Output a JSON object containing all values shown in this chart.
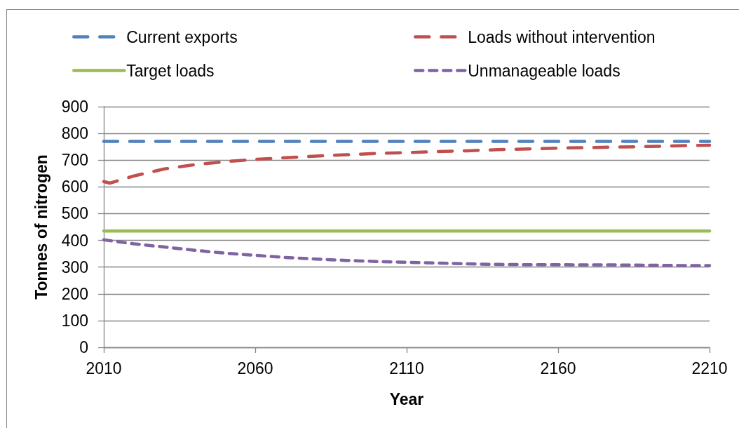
{
  "chart_data": {
    "type": "line",
    "xlabel": "Year",
    "ylabel": "Tonnes of nitrogen",
    "xlim": [
      2010,
      2210
    ],
    "xticks": [
      2010,
      2060,
      2110,
      2160,
      2210
    ],
    "ylim": [
      0,
      900
    ],
    "yticks": [
      0,
      100,
      200,
      300,
      400,
      500,
      600,
      700,
      800,
      900
    ],
    "grid": "y",
    "legend": "top",
    "marker": "none",
    "series": [
      {
        "name": "Current exports",
        "color": "#4f81bd",
        "line_style": "dashed",
        "x": [
          2010,
          2210
        ],
        "values": [
          770,
          770
        ]
      },
      {
        "name": "Loads without intervention",
        "color": "#c0504d",
        "line_style": "dashed",
        "x": [
          2010,
          2012,
          2020,
          2030,
          2040,
          2050,
          2060,
          2070,
          2080,
          2090,
          2100,
          2110,
          2120,
          2130,
          2140,
          2150,
          2160,
          2170,
          2180,
          2190,
          2200,
          2210
        ],
        "values": [
          620,
          614,
          641,
          667,
          683,
          694,
          703,
          709,
          715,
          720,
          725,
          728,
          732,
          735,
          739,
          742,
          745,
          747,
          749,
          751,
          754,
          756
        ]
      },
      {
        "name": "Target loads",
        "color": "#9bbb59",
        "line_style": "solid",
        "x": [
          2010,
          2210
        ],
        "values": [
          435,
          435
        ]
      },
      {
        "name": "Unmanageable loads",
        "color": "#8064a2",
        "line_style": "dotted",
        "x": [
          2010,
          2020,
          2030,
          2040,
          2050,
          2060,
          2070,
          2080,
          2090,
          2100,
          2110,
          2120,
          2130,
          2140,
          2150,
          2160,
          2170,
          2180,
          2190,
          2200,
          2210
        ],
        "values": [
          402,
          387,
          375,
          363,
          352,
          344,
          336,
          330,
          325,
          321,
          318,
          315,
          312,
          310,
          309,
          309,
          308,
          308,
          307,
          306,
          306
        ]
      }
    ]
  }
}
